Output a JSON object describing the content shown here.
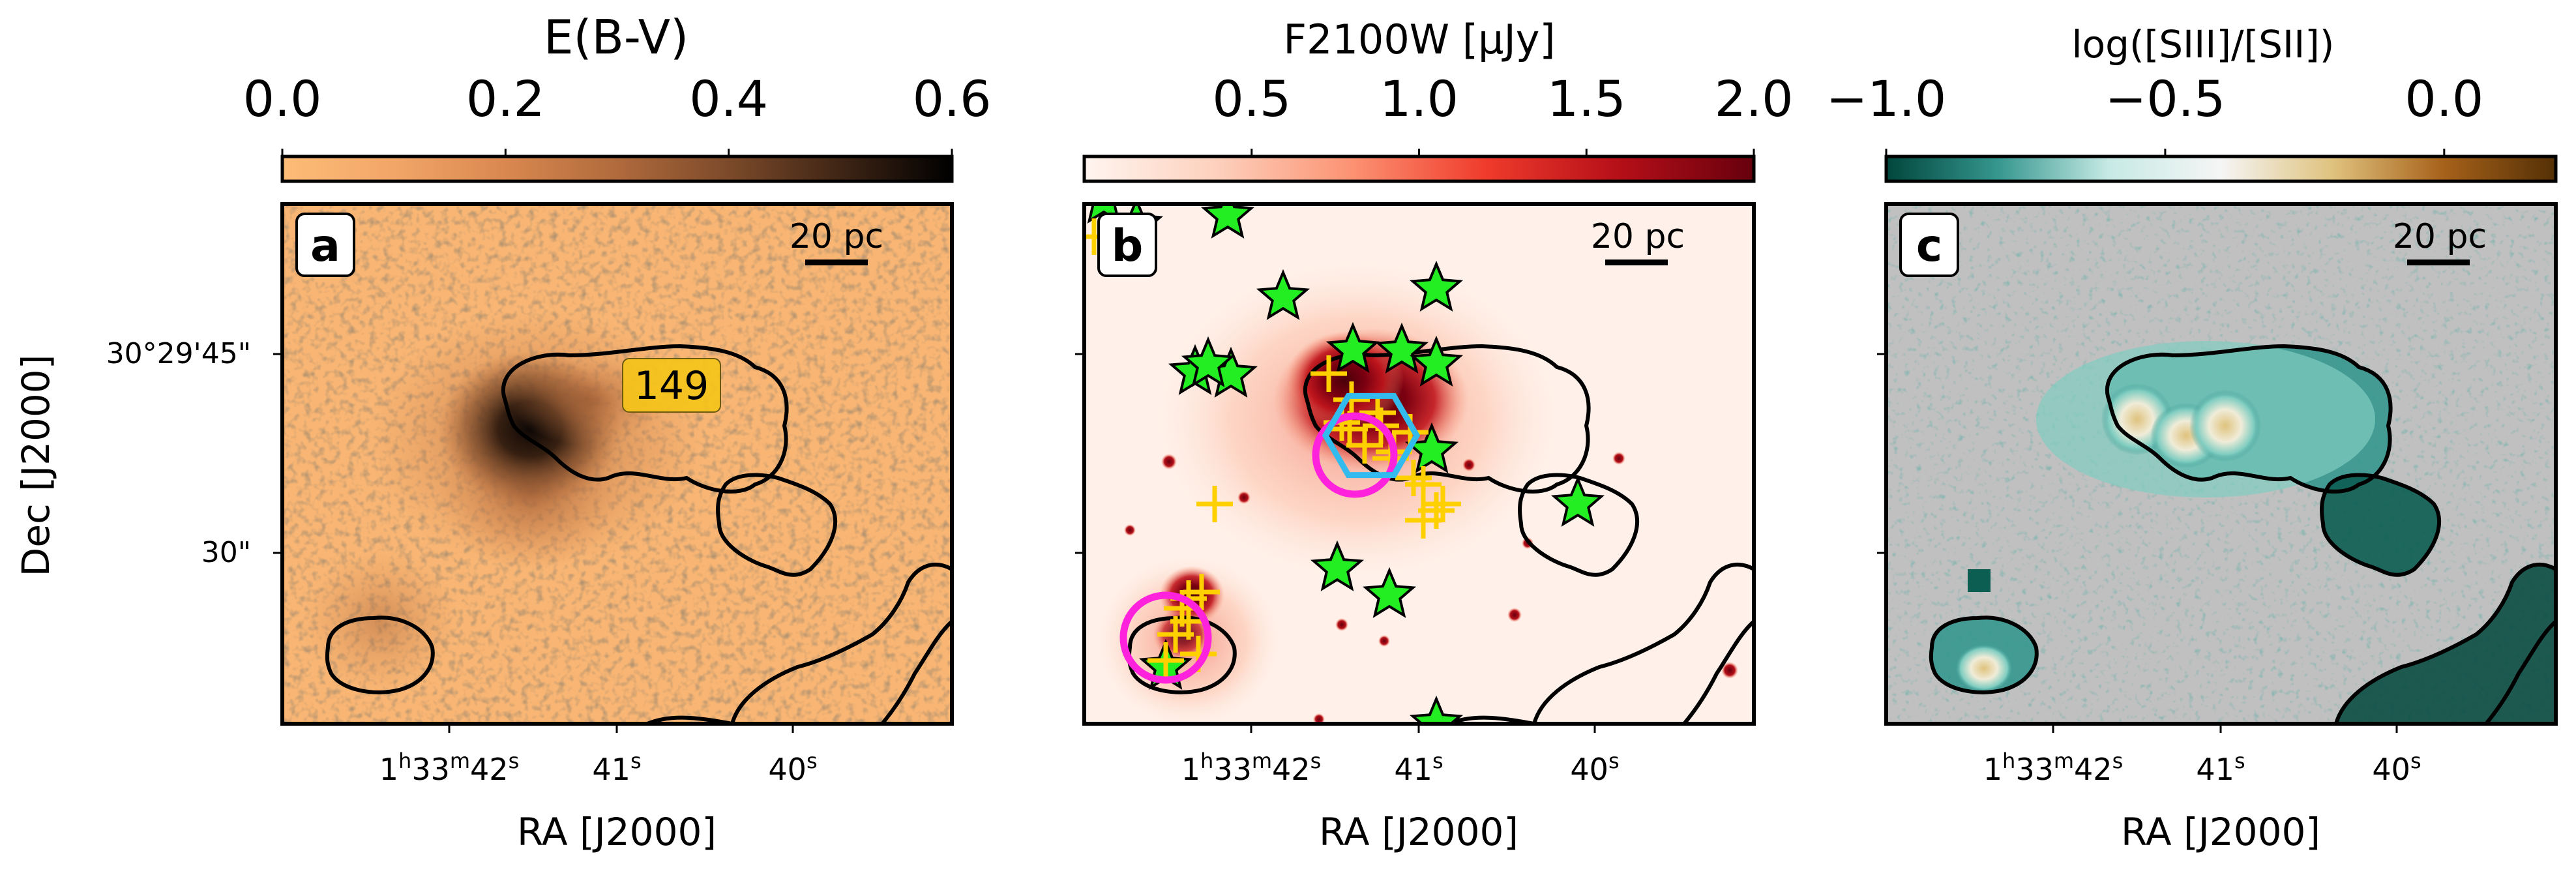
{
  "figure_type": "astronomical image panels",
  "chart_data": [
    {
      "type": "heatmap",
      "panel_letter": "a",
      "colorbar": {
        "label": "E(B-V)",
        "ticks": [
          "0.0",
          "0.2",
          "0.4",
          "0.6"
        ],
        "range": [
          0.0,
          0.6
        ],
        "colors": [
          "#fdbc78",
          "#f2a668",
          "#d9884f",
          "#b06a3c",
          "#7c4a2a",
          "#3f2515",
          "#000000"
        ]
      },
      "background_color": "#f8b573",
      "scale_bar_label": "20 pc",
      "xlabel": "RA [J2000]",
      "ylabel": "Dec [J2000]",
      "xticks": [
        {
          "main": "1",
          "sup1": "h",
          "mid": "33",
          "sup2": "m",
          "end": "42",
          "sup3": "s"
        },
        {
          "main": "41",
          "sup": "s"
        },
        {
          "main": "40",
          "sup": "s"
        }
      ],
      "yticks": [
        "30°29'45\"",
        "30\""
      ],
      "annotation_box": {
        "label": "149",
        "color": "#f5c518"
      }
    },
    {
      "type": "heatmap",
      "panel_letter": "b",
      "colorbar": {
        "label": "F2100W [μJy]",
        "ticks": [
          "0.5",
          "1.0",
          "1.5",
          "2.0"
        ],
        "range": [
          0.0,
          2.0
        ],
        "colors": [
          "#fff5f0",
          "#fdd0bc",
          "#fc9272",
          "#ef3b2c",
          "#b50f18",
          "#67000d"
        ]
      },
      "background_color": "#fff1ea",
      "scale_bar_label": "20 pc",
      "xlabel": "RA [J2000]",
      "markers": {
        "star_color": "#22ee22",
        "cross_color": "#ffd000",
        "circle_color": "#ff22dd",
        "hexagon_color": "#33bbee",
        "stars": 17,
        "crosses": 24,
        "circles": 2,
        "hexagons": 1
      }
    },
    {
      "type": "heatmap",
      "panel_letter": "c",
      "colorbar": {
        "label": "log([SIII]/[SII])",
        "ticks": [
          "−1.0",
          "−0.5",
          "0.0"
        ],
        "range": [
          -1.0,
          0.2
        ],
        "colors": [
          "#01463c",
          "#35978f",
          "#c7eae5",
          "#f5f5f5",
          "#dfc27d",
          "#a6611a",
          "#543005"
        ]
      },
      "background_color": "#c0c0c0",
      "scale_bar_label": "20 pc",
      "xlabel": "RA [J2000]"
    }
  ]
}
